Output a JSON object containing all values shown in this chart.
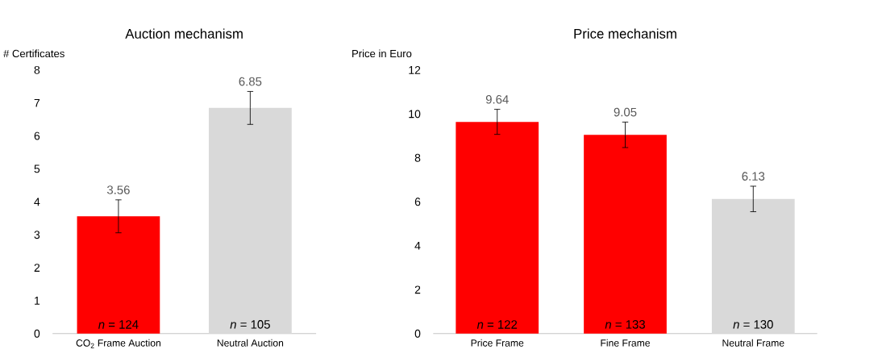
{
  "chart_data": [
    {
      "type": "bar",
      "title": "Auction mechanism",
      "ylabel": "# Certificates",
      "categories": [
        "CO$_{2}$ Frame Auction",
        "Neutral Auction"
      ],
      "values": [
        3.56,
        6.85
      ],
      "colors": [
        "#ff0000",
        "#d9d9d9"
      ],
      "errors": [
        0.5,
        0.5
      ],
      "ylim": [
        0,
        8
      ],
      "yticks": [
        0,
        1,
        2,
        3,
        4,
        5,
        6,
        7,
        8
      ],
      "data_labels": true,
      "annotations": [
        {
          "text": "*n* = 124",
          "x": "CO$_{2}$ Frame Auction",
          "y": 0
        },
        {
          "text": "*n* = 105",
          "x": "Neutral Auction",
          "y": 0
        }
      ]
    },
    {
      "type": "bar",
      "title": "Price mechanism",
      "ylabel": "Price in Euro",
      "categories": [
        "Price Frame",
        "Fine Frame",
        "Neutral Frame"
      ],
      "values": [
        9.64,
        9.05,
        6.13
      ],
      "colors": [
        "#ff0000",
        "#ff0000",
        "#d9d9d9"
      ],
      "errors": [
        0.57,
        0.58,
        0.58
      ],
      "ylim": [
        0,
        12
      ],
      "yticks": [
        0,
        2,
        4,
        6,
        8,
        10,
        12
      ],
      "data_labels": true,
      "annotations": [
        {
          "text": "*n* = 122",
          "x": "Price Frame",
          "y": 0
        },
        {
          "text": "*n* = 133",
          "x": "Fine Frame",
          "y": 0
        },
        {
          "text": "*n* = 130",
          "x": "Neutral Frame",
          "y": 0
        }
      ]
    }
  ]
}
